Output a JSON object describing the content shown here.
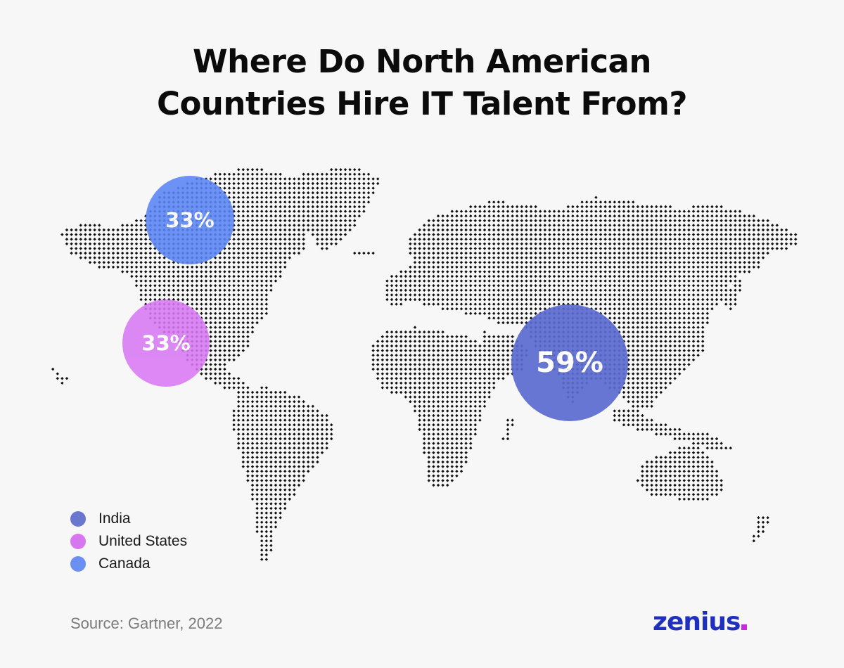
{
  "title": {
    "line1": "Where Do North American",
    "line2": "Countries Hire IT Talent From?"
  },
  "bubbles": {
    "canada": {
      "label": "33%",
      "value": 33,
      "color": "#5b85f5"
    },
    "united_states": {
      "label": "33%",
      "value": 33,
      "color": "#d979f4"
    },
    "india": {
      "label": "59%",
      "value": 59,
      "color": "#5b6bd0"
    }
  },
  "legend": [
    {
      "label": "India",
      "color": "#6a77cf"
    },
    {
      "label": "United States",
      "color": "#d777ef"
    },
    {
      "label": "Canada",
      "color": "#6b8ff2"
    }
  ],
  "source": "Source: Gartner, 2022",
  "logo": {
    "text": "zenius",
    "dot_color": "#c62bd9",
    "text_color": "#1f2fbf"
  },
  "map": {
    "style": "dotted-world-map",
    "dot_color": "#111111"
  }
}
